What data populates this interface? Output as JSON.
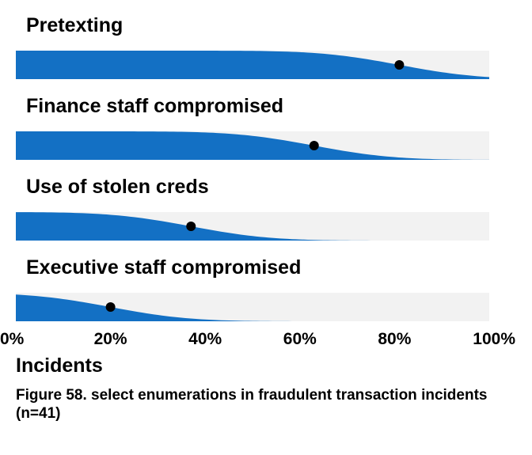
{
  "chart_data": {
    "type": "area",
    "categories": [
      "Pretexting",
      "Finance staff compromised",
      "Use of stolen creds",
      "Executive staff compromised"
    ],
    "values": [
      0.81,
      0.63,
      0.37,
      0.2
    ],
    "xlim": [
      0,
      1
    ],
    "xticks": [
      "0%",
      "20%",
      "40%",
      "60%",
      "80%",
      "100%"
    ],
    "xlabel": "Incidents",
    "grid": false,
    "colors": {
      "area": "#1370C4",
      "track": "#F2F2F2",
      "point": "#000000"
    }
  },
  "caption": "Figure 58. select enumerations in fraudulent transaction incidents (n=41)"
}
